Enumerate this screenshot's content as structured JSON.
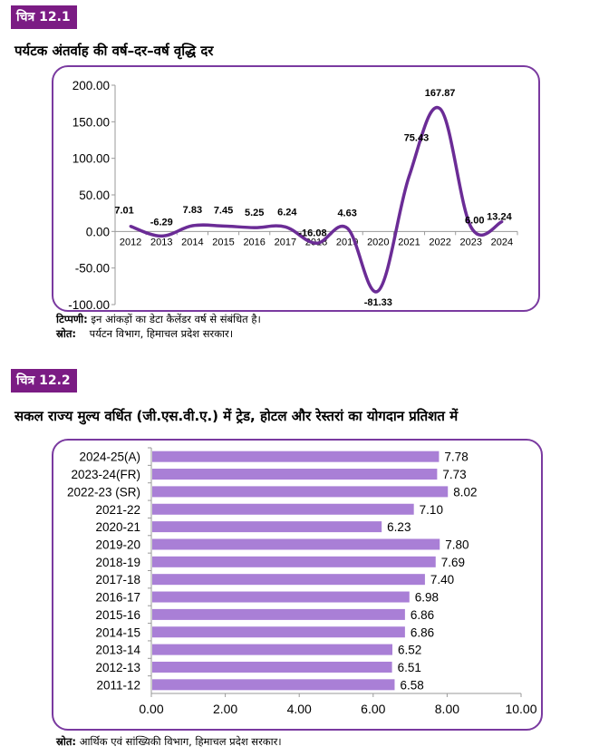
{
  "figure1": {
    "badge": "चित्र 12.1",
    "title": "पर्यटक अंतर्वाह की वर्ष–दर–वर्ष वृद्धि दर",
    "note_label": "टिप्पणी:",
    "note_text": "इन आंकड़ों का डेटा कैलेंडर वर्ष से संबंधित है।",
    "source_label": "स्रोत:",
    "source_text": "पर्यटन विभाग, हिमाचल प्रदेश सरकार।"
  },
  "figure2": {
    "badge": "चित्र 12.2",
    "title": "सकल राज्य मुल्य वर्धित (जी.एस.वी.ए.) में ट्रेड, होटल और रेस्तरां का योगदान प्रतिशत में",
    "source_label": "स्रोत:",
    "source_text": "आर्थिक एवं सांख्यिकी विभाग, हिमाचल प्रदेश सरकार।"
  },
  "chart_data": [
    {
      "type": "line",
      "title": "पर्यटक अंतर्वाह की वर्ष–दर–वर्ष वृद्धि दर",
      "xlabel": "",
      "ylabel": "",
      "categories": [
        "2012",
        "2013",
        "2014",
        "2015",
        "2016",
        "2017",
        "2018",
        "2019",
        "2020",
        "2021",
        "2022",
        "2023",
        "2024"
      ],
      "values": [
        7.01,
        -6.29,
        7.83,
        7.45,
        5.25,
        6.24,
        -16.08,
        4.63,
        -81.33,
        75.43,
        167.87,
        6.0,
        13.24
      ],
      "value_labels": [
        "7.01",
        "-6.29",
        "7.83",
        "7.45",
        "5.25",
        "6.24",
        "-16.08",
        "4.63",
        "-81.33",
        "75.43",
        "167.87",
        "6.00",
        "13.24"
      ],
      "ylim": [
        -100,
        200
      ],
      "yticks": [
        "-100.00",
        "-50.00",
        "0.00",
        "50.00",
        "100.00",
        "150.00",
        "200.00"
      ],
      "color": "#6b2c96",
      "grid": false,
      "legend": "none"
    },
    {
      "type": "bar",
      "orientation": "horizontal",
      "title": "सकल राज्य मुल्य वर्धित (जी.एस.वी.ए.) में ट्रेड, होटल और रेस्तरां का योगदान प्रतिशत में",
      "categories": [
        "2024-25(A)",
        "2023-24(FR)",
        "2022-23 (SR)",
        "2021-22",
        "2020-21",
        "2019-20",
        "2018-19",
        "2017-18",
        "2016-17",
        "2015-16",
        "2014-15",
        "2013-14",
        "2012-13",
        "2011-12"
      ],
      "values": [
        7.78,
        7.73,
        8.02,
        7.1,
        6.23,
        7.8,
        7.69,
        7.4,
        6.98,
        6.86,
        6.86,
        6.52,
        6.51,
        6.58
      ],
      "value_labels": [
        "7.78",
        "7.73",
        "8.02",
        "7.10",
        "6.23",
        "7.80",
        "7.69",
        "7.40",
        "6.98",
        "6.86",
        "6.86",
        "6.52",
        "6.51",
        "6.58"
      ],
      "xlim": [
        0,
        10
      ],
      "xticks": [
        "0.00",
        "2.00",
        "4.00",
        "6.00",
        "8.00",
        "10.00"
      ],
      "color": "#a97fd6",
      "grid": false,
      "legend": "none"
    }
  ]
}
